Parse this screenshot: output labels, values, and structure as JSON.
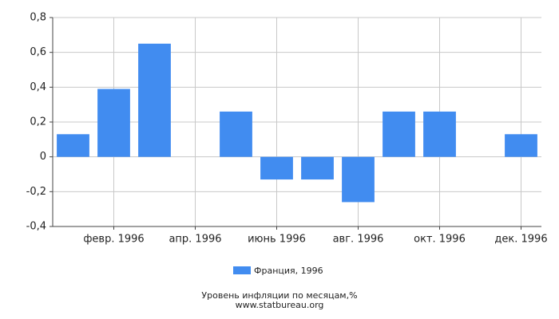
{
  "chart_data": {
    "type": "bar",
    "title": "Уровень инфляции по месяцам,%",
    "source": "www.statbureau.org",
    "categories": [
      null,
      "февр. 1996",
      null,
      "апр. 1996",
      null,
      "июнь 1996",
      null,
      "авг. 1996",
      null,
      "окт. 1996",
      null,
      "дек. 1996"
    ],
    "series": [
      {
        "name": "Франция, 1996",
        "color": "#418cf0",
        "values": [
          0.13,
          0.39,
          0.65,
          0,
          0.26,
          -0.13,
          -0.13,
          -0.26,
          0.26,
          0.26,
          0,
          0.13
        ]
      }
    ],
    "ylim": [
      -0.4,
      0.8
    ],
    "yticks": [
      {
        "value": -0.4,
        "label": "-0,4"
      },
      {
        "value": -0.2,
        "label": "-0,2"
      },
      0,
      {
        "value": 0.2,
        "label": "0,2"
      },
      {
        "value": 0.4,
        "label": "0,4"
      },
      {
        "value": 0.6,
        "label": "0,6"
      },
      {
        "value": 0.8,
        "label": "0,8"
      }
    ],
    "grid": true
  }
}
